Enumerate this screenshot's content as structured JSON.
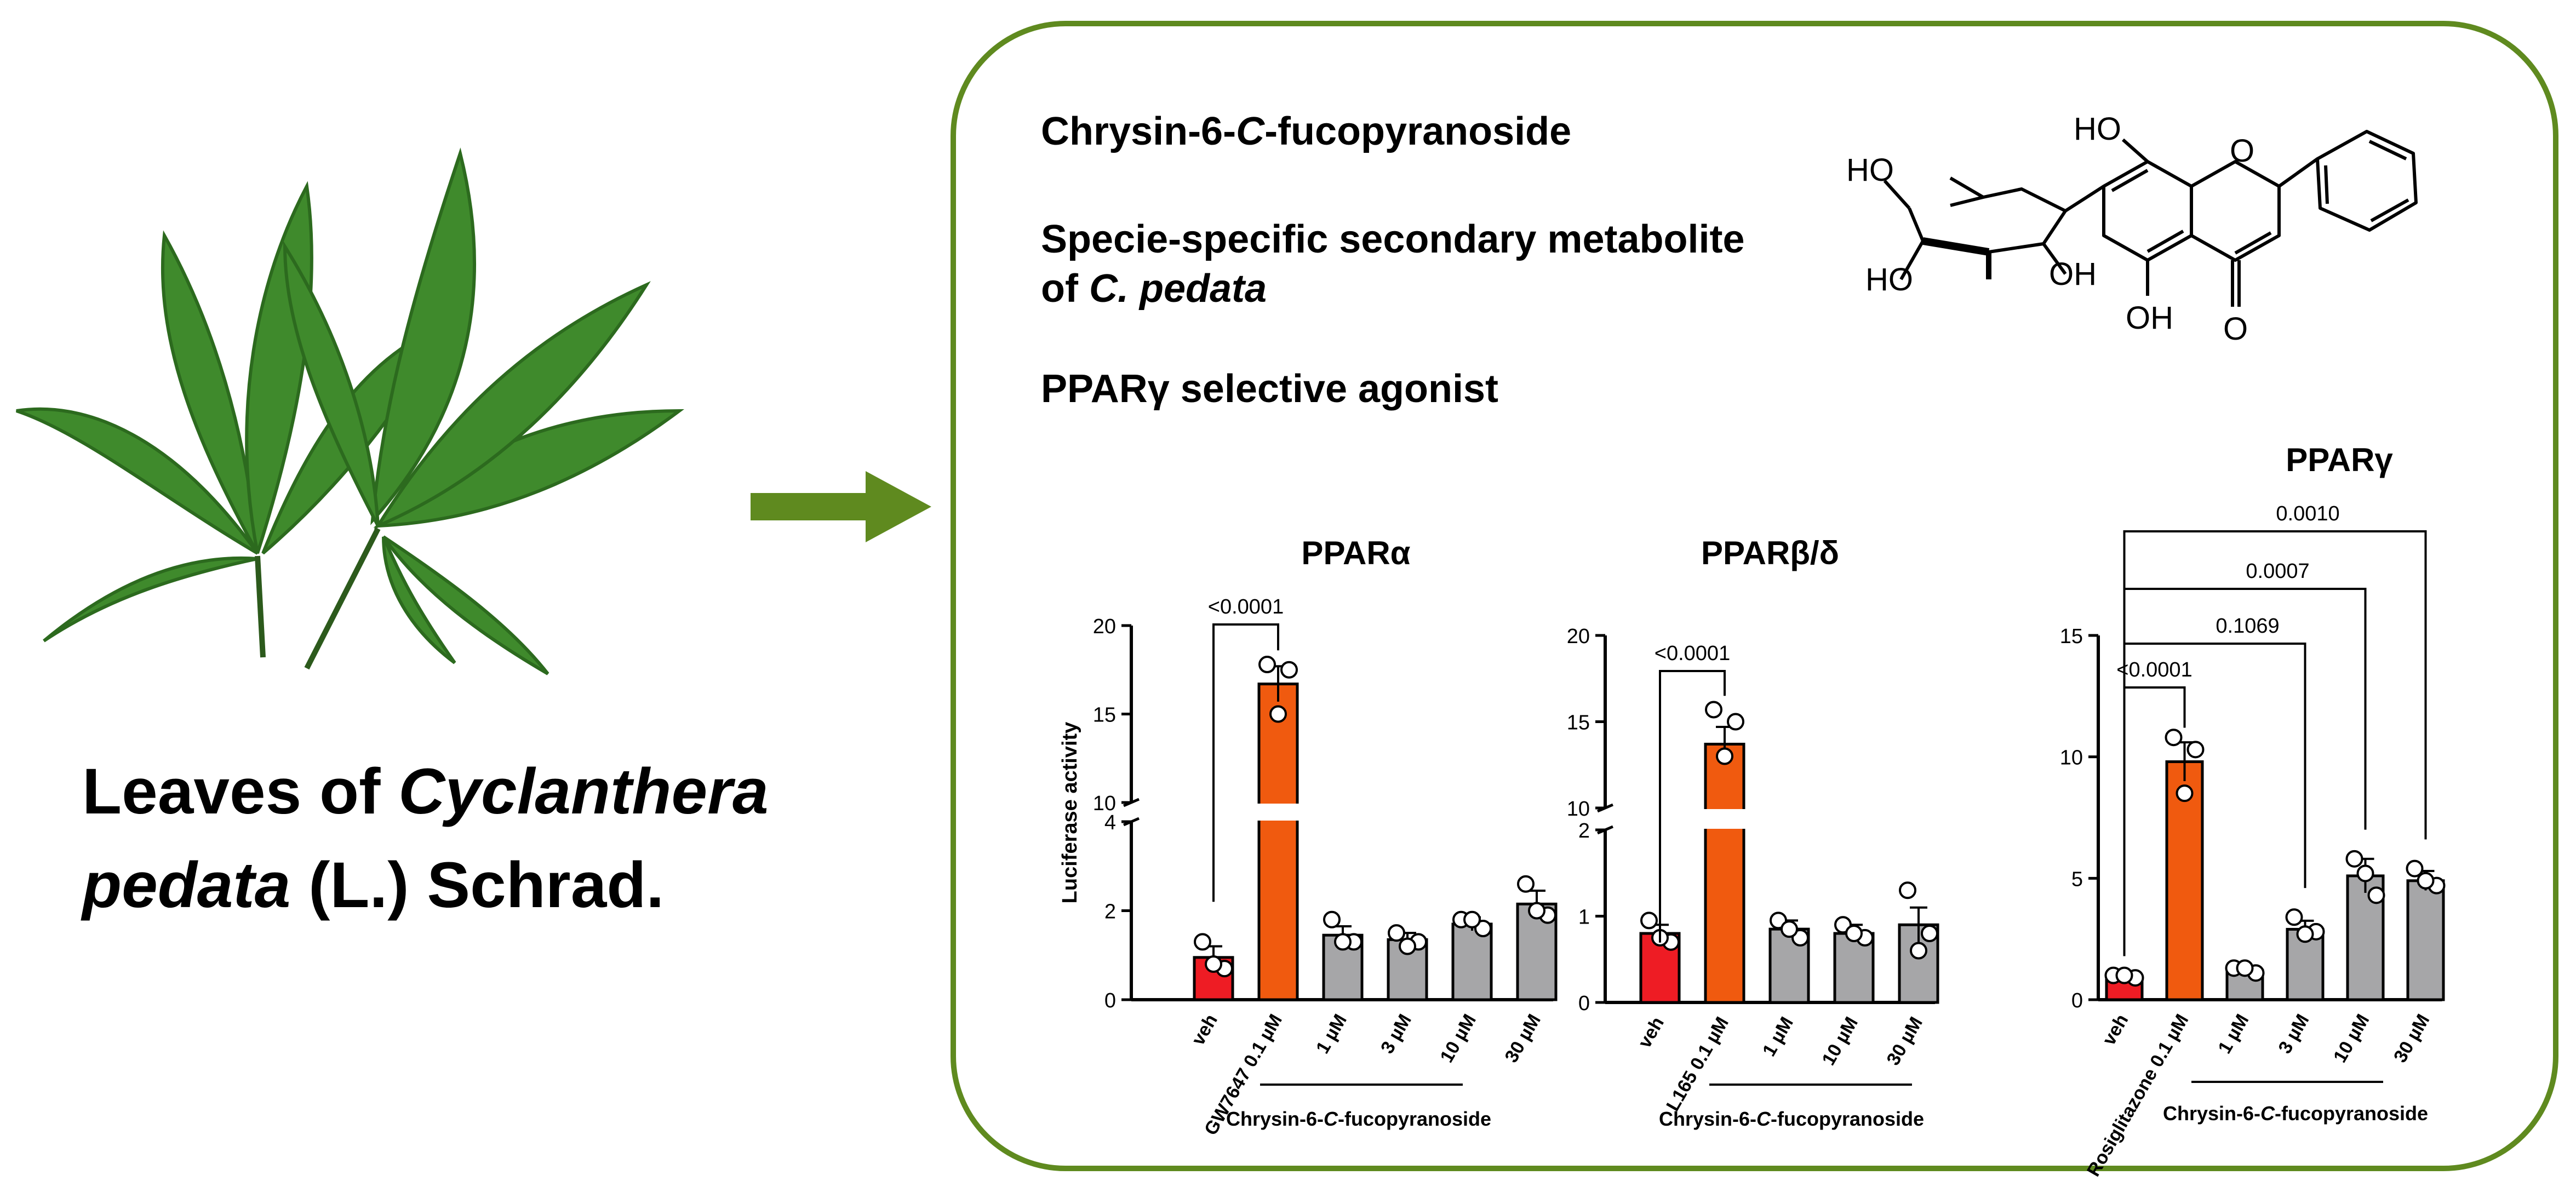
{
  "caption": {
    "line1_pre": "Leaves of ",
    "line1_italic": "Cyclanthera",
    "line2_italic": "pedata",
    "line2_post": " (L.) Schrad."
  },
  "panel": {
    "title_pre": "Chrysin-6-",
    "title_italic": "C",
    "title_post": "-fucopyranoside",
    "desc_line1": "Specie-specific secondary metabolite",
    "desc_line2_pre": "of ",
    "desc_line2_italic": "C. pedata",
    "agonist": "PPARγ selective agonist"
  },
  "molecule_labels": [
    "HO",
    "O",
    "HO",
    "HO",
    "OH",
    "OH",
    "O"
  ],
  "colors": {
    "green": "#5f8a1f",
    "veh": "#ee1c24",
    "positive": "#f05a0f",
    "compound": "#a6a6a8",
    "leaf": "#3f8a2c"
  },
  "chart_data": [
    {
      "type": "bar",
      "title": "PPARα",
      "ylabel": "Luciferase activity",
      "categories": [
        "veh",
        "GW7647 0.1 µM",
        "1 µM",
        "3 µM",
        "10 µM",
        "30 µM"
      ],
      "values": [
        0.95,
        16.7,
        1.45,
        1.35,
        1.7,
        2.15
      ],
      "sem": [
        0.25,
        1.0,
        0.2,
        0.15,
        0.15,
        0.3
      ],
      "points": [
        [
          1.3,
          0.7,
          0.8
        ],
        [
          17.8,
          17.5,
          15.0
        ],
        [
          1.8,
          1.3,
          1.3
        ],
        [
          1.5,
          1.3,
          1.2
        ],
        [
          1.8,
          1.6,
          1.8
        ],
        [
          2.6,
          1.9,
          2.0
        ]
      ],
      "broken_axis": {
        "lower": [
          0,
          4
        ],
        "upper": [
          10,
          20
        ]
      },
      "yticks": [
        "0",
        "2",
        "4",
        "10",
        "15",
        "20"
      ],
      "comparisons": [
        {
          "from": 0,
          "to": 1,
          "label": "<0.0001"
        }
      ],
      "group_label_pre": "Chrysin-6-",
      "group_label_italic": "C",
      "group_label_post": "-fucopyranoside"
    },
    {
      "type": "bar",
      "title": "PPARβ/δ",
      "categories": [
        "veh",
        "L165 0.1 µM",
        "1 µM",
        "10 µM",
        "30 µM"
      ],
      "values": [
        0.8,
        13.7,
        0.85,
        0.8,
        0.9
      ],
      "sem": [
        0.1,
        1.0,
        0.1,
        0.1,
        0.2
      ],
      "points": [
        [
          0.95,
          0.7,
          0.75
        ],
        [
          15.7,
          15.0,
          13.0
        ],
        [
          0.95,
          0.75,
          0.85
        ],
        [
          0.9,
          0.75,
          0.8
        ],
        [
          1.3,
          0.8,
          0.6
        ]
      ],
      "broken_axis": {
        "lower": [
          0,
          2
        ],
        "upper": [
          10,
          20
        ]
      },
      "yticks": [
        "0",
        "1",
        "2",
        "10",
        "15",
        "20"
      ],
      "comparisons": [
        {
          "from": 0,
          "to": 1,
          "label": "<0.0001"
        }
      ],
      "group_label_pre": "Chrysin-6-",
      "group_label_italic": "C",
      "group_label_post": "-fucopyranoside"
    },
    {
      "type": "bar",
      "title": "PPARγ",
      "categories": [
        "veh",
        "Rosiglitazone 0.1 µM",
        "1 µM",
        "3 µM",
        "10 µM",
        "30 µM"
      ],
      "values": [
        0.95,
        9.8,
        1.2,
        2.9,
        5.1,
        4.9
      ],
      "sem": [
        0.1,
        0.8,
        0.15,
        0.35,
        0.7,
        0.4
      ],
      "points": [
        [
          1.0,
          0.9,
          1.0
        ],
        [
          10.8,
          10.3,
          8.5
        ],
        [
          1.3,
          1.1,
          1.3
        ],
        [
          3.4,
          2.8,
          2.7
        ],
        [
          5.8,
          4.3,
          5.2
        ],
        [
          5.4,
          4.7,
          4.9
        ]
      ],
      "ylim": [
        0,
        15
      ],
      "yticks": [
        "0",
        "5",
        "10",
        "15"
      ],
      "comparisons": [
        {
          "from": 0,
          "to": 1,
          "label": "<0.0001"
        },
        {
          "from": 0,
          "to": 3,
          "label": "0.1069"
        },
        {
          "from": 0,
          "to": 4,
          "label": "0.0007"
        },
        {
          "from": 0,
          "to": 5,
          "label": "0.0010"
        }
      ],
      "group_label_pre": "Chrysin-6-",
      "group_label_italic": "C",
      "group_label_post": "-fucopyranoside"
    }
  ]
}
